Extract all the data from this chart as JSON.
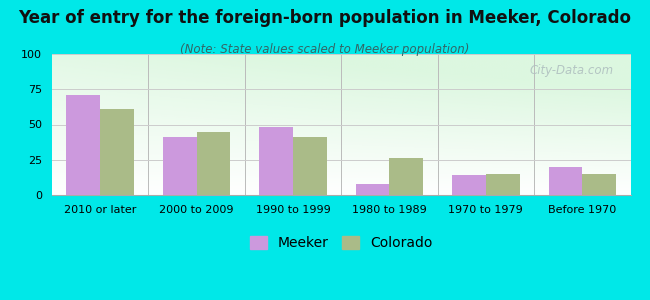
{
  "title": "Year of entry for the foreign-born population in Meeker, Colorado",
  "subtitle": "(Note: State values scaled to Meeker population)",
  "categories": [
    "2010 or later",
    "2000 to 2009",
    "1990 to 1999",
    "1980 to 1989",
    "1970 to 1979",
    "Before 1970"
  ],
  "meeker_values": [
    71,
    41,
    48,
    8,
    14,
    20
  ],
  "colorado_values": [
    61,
    45,
    41,
    26,
    15,
    15
  ],
  "meeker_color": "#cc99dd",
  "colorado_color": "#aabb88",
  "background_outer": "#00e8e8",
  "background_inner_top": "#d0eed8",
  "background_inner_bottom": "#f5fdf5",
  "ylim": [
    0,
    100
  ],
  "yticks": [
    0,
    25,
    50,
    75,
    100
  ],
  "bar_width": 0.35,
  "title_fontsize": 12,
  "subtitle_fontsize": 8.5,
  "tick_fontsize": 8,
  "legend_fontsize": 10
}
